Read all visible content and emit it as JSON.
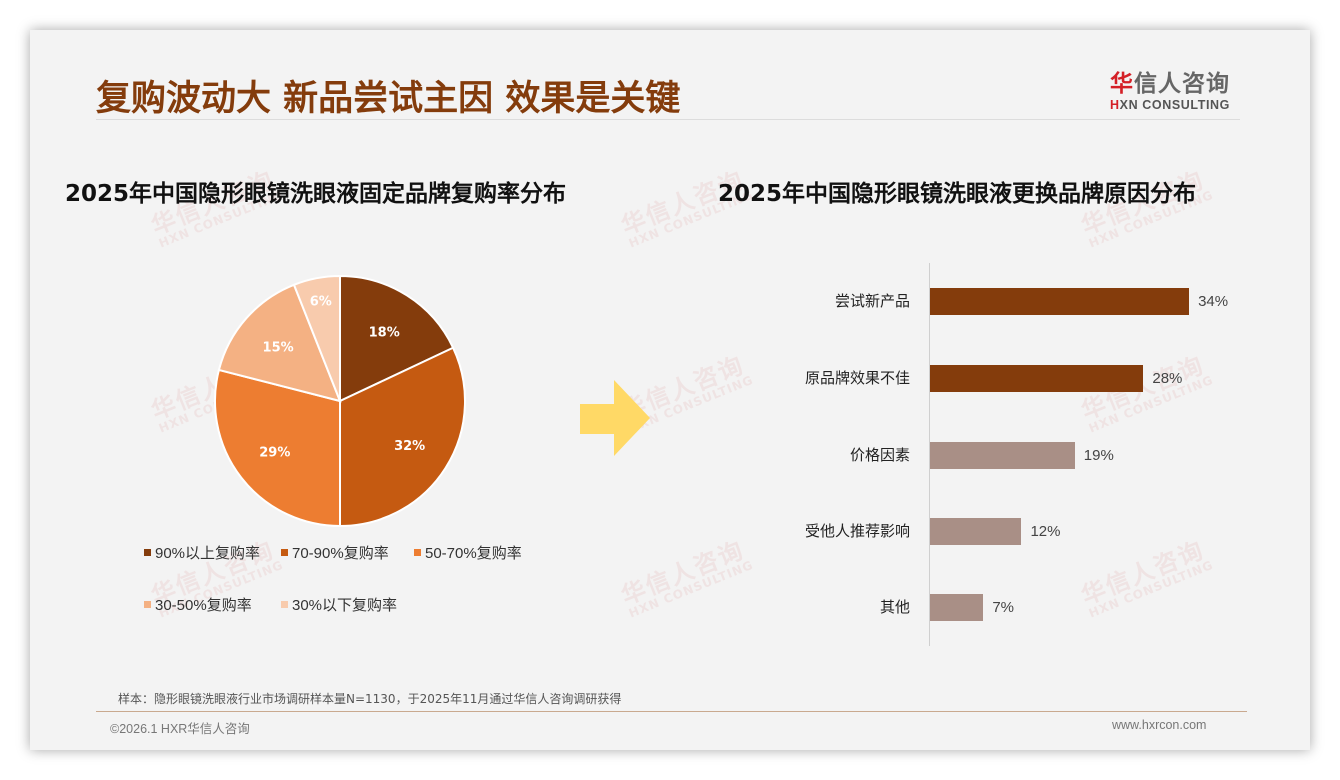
{
  "header": {
    "title": "复购波动大 新品尝试主因 效果是关键",
    "logo": {
      "cn_first": "华",
      "cn_rest": "信人咨询",
      "en_first": "H",
      "en_rest": "XN CONSULTING"
    }
  },
  "watermark": {
    "cn": "华信人咨询",
    "en": "HXN CONSULTING"
  },
  "colors": {
    "title": "#843c0c",
    "pie": [
      "#843c0c",
      "#c55a11",
      "#ed7d31",
      "#f4b183",
      "#f8cbad"
    ],
    "bar_highlight": "#843c0c",
    "bar_muted": "#a98f86",
    "arrow": "#ffd966",
    "logo_red": "#d42027"
  },
  "left_chart": {
    "title": "2025年中国隐形眼镜洗眼液固定品牌复购率分布",
    "slices": [
      {
        "label": "90%以上复购率",
        "value": 18,
        "display": "18%"
      },
      {
        "label": "70-90%复购率",
        "value": 32,
        "display": "32%"
      },
      {
        "label": "50-70%复购率",
        "value": 29,
        "display": "29%"
      },
      {
        "label": "30-50%复购率",
        "value": 15,
        "display": "15%"
      },
      {
        "label": "30%以下复购率",
        "value": 6,
        "display": "6%"
      }
    ]
  },
  "right_chart": {
    "title": "2025年中国隐形眼镜洗眼液更换品牌原因分布",
    "bars": [
      {
        "label": "尝试新产品",
        "value": 34,
        "display": "34%"
      },
      {
        "label": "原品牌效果不佳",
        "value": 28,
        "display": "28%"
      },
      {
        "label": "价格因素",
        "value": 19,
        "display": "19%"
      },
      {
        "label": "受他人推荐影响",
        "value": 12,
        "display": "12%"
      },
      {
        "label": "其他",
        "value": 7,
        "display": "7%"
      }
    ]
  },
  "chart_data": [
    {
      "type": "pie",
      "title": "2025年中国隐形眼镜洗眼液固定品牌复购率分布",
      "categories": [
        "90%以上复购率",
        "70-90%复购率",
        "50-70%复购率",
        "30-50%复购率",
        "30%以下复购率"
      ],
      "values": [
        18,
        32,
        29,
        15,
        6
      ],
      "unit": "%",
      "legend_position": "bottom"
    },
    {
      "type": "bar",
      "orientation": "horizontal",
      "title": "2025年中国隐形眼镜洗眼液更换品牌原因分布",
      "categories": [
        "尝试新产品",
        "原品牌效果不佳",
        "价格因素",
        "受他人推荐影响",
        "其他"
      ],
      "values": [
        34,
        28,
        19,
        12,
        7
      ],
      "unit": "%",
      "xlabel": "",
      "ylabel": "",
      "grid": false
    }
  ],
  "footer": {
    "note": "样本：隐形眼镜洗眼液行业市场调研样本量N=1130，于2025年11月通过华信人咨询调研获得",
    "copyright": "©2026.1 HXR华信人咨询",
    "website": "www.hxrcon.com"
  }
}
